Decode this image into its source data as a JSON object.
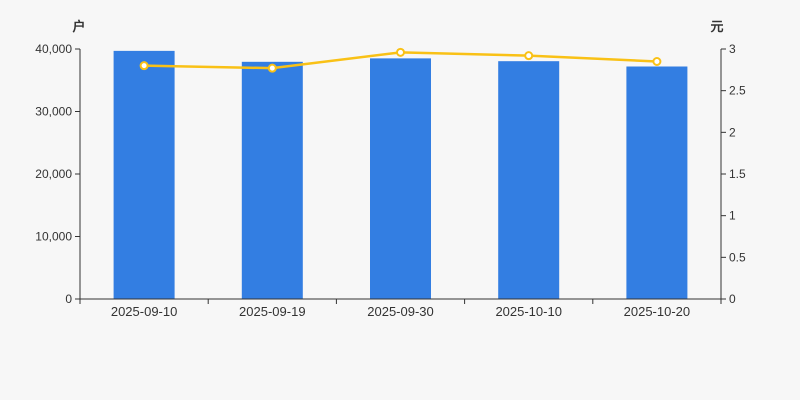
{
  "chart_data": {
    "type": "bar",
    "combo": "bar+line-dual-axis",
    "categories": [
      "2025-09-10",
      "2025-09-19",
      "2025-09-30",
      "2025-10-10",
      "2025-10-20"
    ],
    "series": [
      {
        "type": "bar",
        "axis": "left",
        "unit": "户",
        "values": [
          39700,
          37950,
          38500,
          38050,
          37200
        ]
      },
      {
        "type": "line",
        "axis": "right",
        "unit": "元",
        "values": [
          2.8,
          2.77,
          2.96,
          2.92,
          2.85
        ]
      }
    ],
    "left_axis": {
      "label": "户",
      "min": 0,
      "max": 40000,
      "tick_step": 10000,
      "tick_labels": [
        "0",
        "10,000",
        "20,000",
        "30,000",
        "40,000"
      ]
    },
    "right_axis": {
      "label": "元",
      "min": 0,
      "max": 3,
      "tick_step": 0.5,
      "tick_labels": [
        "0",
        "0.5",
        "1",
        "1.5",
        "2",
        "2.5",
        "3"
      ]
    },
    "grid": false,
    "legend_position": "none"
  },
  "colors": {
    "background": "#f7f7f7",
    "bar": "#337ee2",
    "line": "#f9c116",
    "marker_fill": "#ffffff",
    "axis": "#333333",
    "text": "#333333"
  }
}
